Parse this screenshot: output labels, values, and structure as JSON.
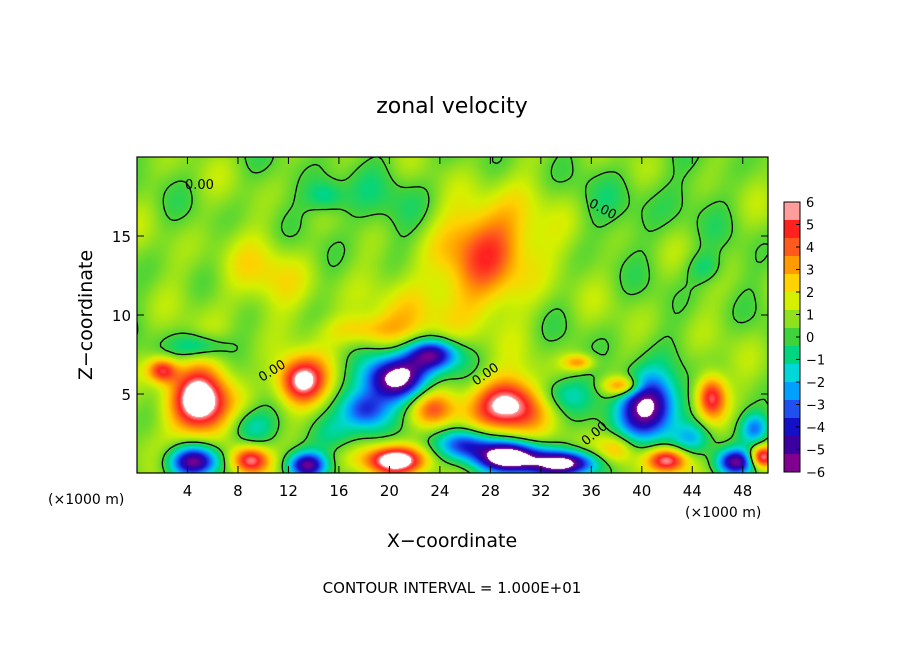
{
  "chart_data": {
    "type": "heatmap",
    "title": "zonal velocity",
    "xlabel": "X−coordinate",
    "ylabel": "Z−coordinate",
    "x_unit": "(×1000 m)",
    "x_unit_right": "(×1000 m)",
    "footer": "CONTOUR INTERVAL = 1.000E+01",
    "xlim": [
      0,
      50
    ],
    "ylim": [
      0,
      20
    ],
    "x_ticks": [
      4,
      8,
      12,
      16,
      20,
      24,
      28,
      32,
      36,
      40,
      44,
      48
    ],
    "y_ticks": [
      5,
      10,
      15
    ],
    "contour_label": "0.00",
    "colorbar": {
      "ticks": [
        "6",
        "5",
        "4",
        "3",
        "2",
        "1",
        "0",
        "−1",
        "−2",
        "−3",
        "−4",
        "−5",
        "−6"
      ],
      "colors": [
        "#ff9c9c",
        "#ff2020",
        "#ff5a1e",
        "#ff9a00",
        "#ffd200",
        "#d4f000",
        "#8fe11e",
        "#3fd23c",
        "#00d580",
        "#00d7d7",
        "#00a0ff",
        "#2050f0",
        "#1410c8",
        "#3c00a0",
        "#800090"
      ]
    },
    "features": [
      {
        "x": 28,
        "z": 14.5,
        "value": 4.2,
        "rx": 4,
        "rz": 3.0
      },
      {
        "x": 24,
        "z": 10.5,
        "value": 1.8,
        "rx": 5,
        "rz": 2.5
      },
      {
        "x": 18,
        "z": 9.0,
        "value": 2.5,
        "rx": 3,
        "rz": 1.0
      },
      {
        "x": 10,
        "z": 12.5,
        "value": 1.5,
        "rx": 4,
        "rz": 2.5
      },
      {
        "x": 15,
        "z": 17.5,
        "value": -2.0,
        "rx": 1.5,
        "rz": 1.0
      },
      {
        "x": 5,
        "z": 8.0,
        "value": -2.5,
        "rx": 2,
        "rz": 0.8
      },
      {
        "x": 45,
        "z": 13.0,
        "value": -1.5,
        "rx": 1.5,
        "rz": 1.0
      },
      {
        "x": 20,
        "z": 17.0,
        "value": -0.8,
        "rx": 6,
        "rz": 2.5
      },
      {
        "x": 40,
        "z": 17.0,
        "value": -0.6,
        "rx": 6,
        "rz": 2.5
      },
      {
        "x": 5,
        "z": 4.5,
        "value": 7.5,
        "rx": 2.3,
        "rz": 2.2
      },
      {
        "x": 2.0,
        "z": 6.5,
        "value": 5.0,
        "rx": 1.2,
        "rz": 0.8
      },
      {
        "x": 13,
        "z": 5.8,
        "value": 6.5,
        "rx": 2.0,
        "rz": 1.5
      },
      {
        "x": 20.5,
        "z": 6.0,
        "value": -8.0,
        "rx": 2.6,
        "rz": 1.4
      },
      {
        "x": 23.5,
        "z": 7.5,
        "value": -6.5,
        "rx": 2.0,
        "rz": 1.0
      },
      {
        "x": 18.0,
        "z": 4.0,
        "value": -4.5,
        "rx": 1.8,
        "rz": 1.2
      },
      {
        "x": 29.5,
        "z": 4.3,
        "value": 7.0,
        "rx": 2.8,
        "rz": 1.7
      },
      {
        "x": 23.5,
        "z": 4.0,
        "value": 3.5,
        "rx": 1.8,
        "rz": 1.2
      },
      {
        "x": 33.5,
        "z": 5.0,
        "value": -2.5,
        "rx": 2.2,
        "rz": 1.2
      },
      {
        "x": 40.5,
        "z": 4.2,
        "value": -8.0,
        "rx": 2.3,
        "rz": 2.0
      },
      {
        "x": 38.5,
        "z": 5.5,
        "value": 4.0,
        "rx": 1.5,
        "rz": 0.6
      },
      {
        "x": 45.5,
        "z": 4.8,
        "value": 5.8,
        "rx": 1.2,
        "rz": 1.4
      },
      {
        "x": 49.0,
        "z": 2.8,
        "value": -4.0,
        "rx": 1.2,
        "rz": 1.0
      },
      {
        "x": 35.0,
        "z": 7.0,
        "value": 3.0,
        "rx": 1.2,
        "rz": 0.5
      },
      {
        "x": 4.5,
        "z": 0.7,
        "value": -7.0,
        "rx": 2.0,
        "rz": 1.0
      },
      {
        "x": 9.0,
        "z": 0.8,
        "value": 6.0,
        "rx": 1.5,
        "rz": 0.9
      },
      {
        "x": 13.5,
        "z": 0.5,
        "value": -6.0,
        "rx": 1.5,
        "rz": 0.8
      },
      {
        "x": 20.5,
        "z": 0.8,
        "value": 7.0,
        "rx": 2.5,
        "rz": 0.9
      },
      {
        "x": 26.0,
        "z": 1.8,
        "value": -5.0,
        "rx": 2.0,
        "rz": 1.0
      },
      {
        "x": 29.5,
        "z": 1.0,
        "value": -9.0,
        "rx": 2.5,
        "rz": 1.0
      },
      {
        "x": 34.0,
        "z": 0.6,
        "value": -8.0,
        "rx": 2.5,
        "rz": 0.8
      },
      {
        "x": 38.0,
        "z": 1.5,
        "value": 3.0,
        "rx": 1.5,
        "rz": 1.0
      },
      {
        "x": 42.0,
        "z": 0.8,
        "value": 6.0,
        "rx": 1.6,
        "rz": 0.8
      },
      {
        "x": 47.5,
        "z": 0.7,
        "value": -6.0,
        "rx": 1.5,
        "rz": 0.8
      },
      {
        "x": 49.5,
        "z": 1.0,
        "value": 6.0,
        "rx": 1.0,
        "rz": 0.7
      },
      {
        "x": 9.0,
        "z": 3.0,
        "value": -2.5,
        "rx": 2.0,
        "rz": 1.2
      },
      {
        "x": 16.0,
        "z": 2.5,
        "value": -2.0,
        "rx": 2.0,
        "rz": 1.2
      },
      {
        "x": 44.0,
        "z": 2.2,
        "value": -2.5,
        "rx": 1.5,
        "rz": 1.0
      }
    ]
  }
}
